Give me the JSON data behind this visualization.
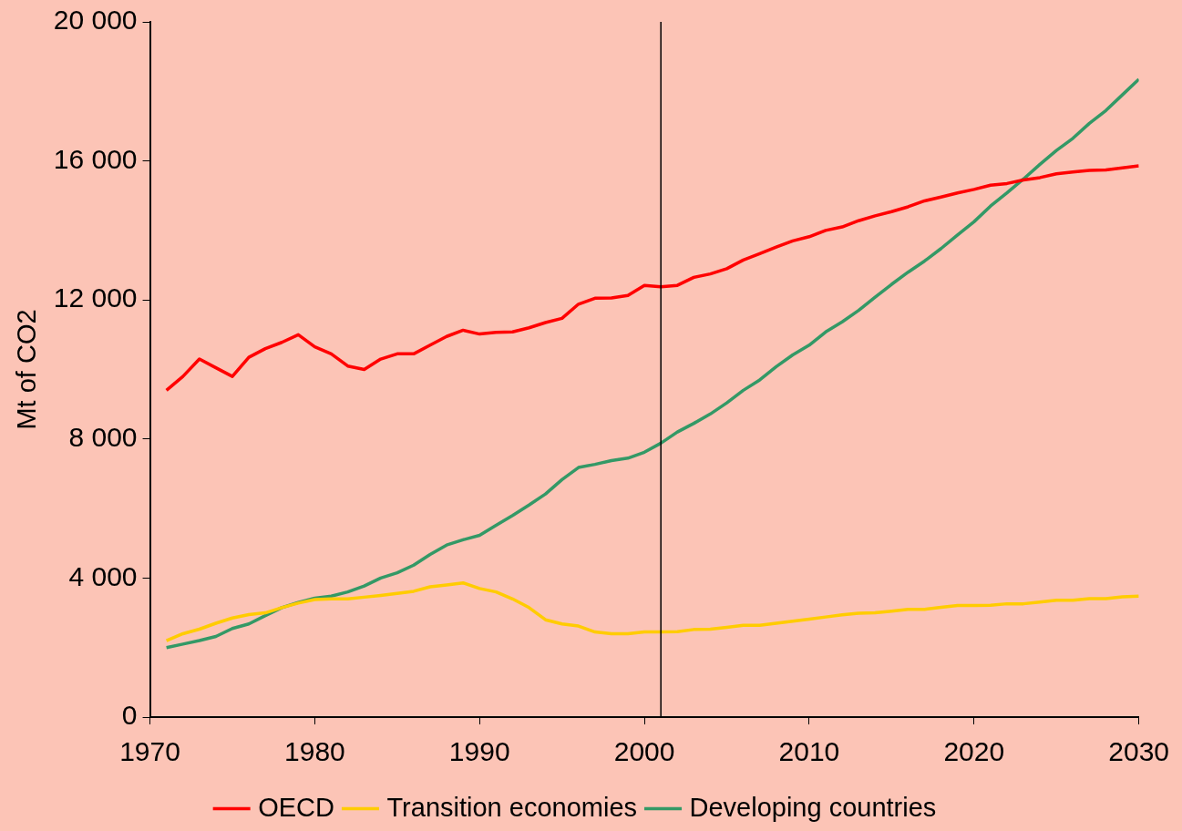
{
  "chart_data": {
    "type": "line",
    "ylabel": "Mt of CO2",
    "x": [
      1971,
      1972,
      1973,
      1974,
      1975,
      1976,
      1977,
      1978,
      1979,
      1980,
      1981,
      1982,
      1983,
      1984,
      1985,
      1986,
      1987,
      1988,
      1989,
      1990,
      1991,
      1992,
      1993,
      1994,
      1995,
      1996,
      1997,
      1998,
      1999,
      2000,
      2001,
      2002,
      2003,
      2004,
      2005,
      2006,
      2007,
      2008,
      2009,
      2010,
      2011,
      2012,
      2013,
      2014,
      2015,
      2016,
      2017,
      2018,
      2019,
      2020,
      2021,
      2022,
      2023,
      2024,
      2025,
      2026,
      2027,
      2028,
      2029,
      2030
    ],
    "series": [
      {
        "name": "OECD",
        "color": "#ff0000",
        "values": [
          9400,
          9800,
          10300,
          10050,
          9800,
          10350,
          10600,
          10780,
          11000,
          10650,
          10450,
          10100,
          10000,
          10300,
          10450,
          10450,
          10700,
          10950,
          11130,
          11020,
          11070,
          11080,
          11200,
          11350,
          11470,
          11880,
          12050,
          12060,
          12130,
          12420,
          12380,
          12420,
          12650,
          12750,
          12900,
          13150,
          13330,
          13520,
          13700,
          13820,
          14000,
          14100,
          14280,
          14420,
          14540,
          14680,
          14850,
          14960,
          15080,
          15180,
          15300,
          15350,
          15450,
          15520,
          15630,
          15680,
          15730,
          15740,
          15800,
          15860
        ]
      },
      {
        "name": "Transition economies",
        "color": "#ffcc00",
        "values": [
          2200,
          2400,
          2530,
          2700,
          2850,
          2950,
          3000,
          3150,
          3280,
          3380,
          3400,
          3400,
          3450,
          3500,
          3560,
          3620,
          3750,
          3800,
          3860,
          3700,
          3600,
          3400,
          3150,
          2800,
          2680,
          2620,
          2450,
          2400,
          2400,
          2450,
          2450,
          2460,
          2520,
          2530,
          2580,
          2640,
          2640,
          2700,
          2760,
          2820,
          2880,
          2940,
          2990,
          3000,
          3050,
          3100,
          3100,
          3160,
          3210,
          3210,
          3220,
          3260,
          3260,
          3310,
          3360,
          3360,
          3410,
          3410,
          3460,
          3480
        ]
      },
      {
        "name": "Developing countries",
        "color": "#339966",
        "values": [
          2000,
          2100,
          2200,
          2320,
          2550,
          2680,
          2920,
          3150,
          3300,
          3420,
          3480,
          3600,
          3770,
          4000,
          4150,
          4370,
          4680,
          4950,
          5100,
          5230,
          5520,
          5800,
          6100,
          6420,
          6830,
          7180,
          7270,
          7380,
          7450,
          7620,
          7880,
          8200,
          8450,
          8720,
          9040,
          9400,
          9700,
          10080,
          10420,
          10700,
          11080,
          11370,
          11700,
          12080,
          12450,
          12800,
          13120,
          13480,
          13870,
          14250,
          14700,
          15080,
          15480,
          15900,
          16300,
          16650,
          17080,
          17450,
          17900,
          18350
        ]
      }
    ],
    "xlim": [
      1970,
      2030
    ],
    "xticks": [
      1970,
      1980,
      1990,
      2000,
      2010,
      2020,
      2030
    ],
    "ylim": [
      0,
      20000
    ],
    "yticks": [
      {
        "value": 0,
        "label": "0"
      },
      {
        "value": 4000,
        "label": "4 000"
      },
      {
        "value": 8000,
        "label": "8 000"
      },
      {
        "value": 12000,
        "label": "12 000"
      },
      {
        "value": 16000,
        "label": "16 000"
      },
      {
        "value": 20000,
        "label": "20 000"
      }
    ],
    "ref_lines": [
      {
        "axis": "x",
        "value": 2001,
        "color": "#000000"
      }
    ],
    "legend": "bottom",
    "grid": false,
    "marker": "none",
    "line_style": "solid"
  }
}
